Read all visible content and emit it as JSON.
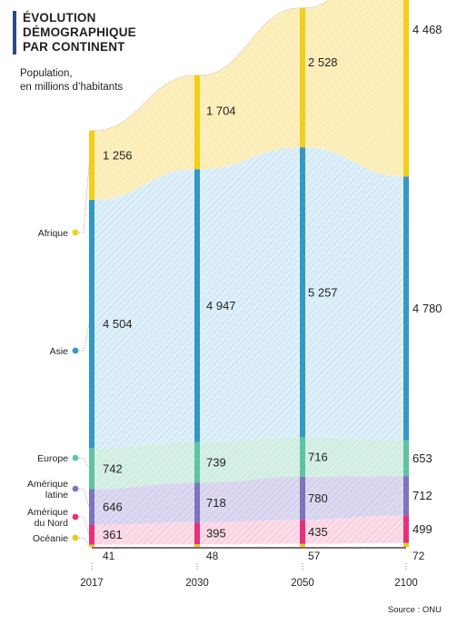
{
  "title_lines": [
    "ÉVOLUTION",
    "DÉMOGRAPHIQUE",
    "PAR CONTINENT"
  ],
  "subtitle_lines": [
    "Population,",
    "en millions d’habitants"
  ],
  "source": "Source : ONU",
  "chart_data": {
    "type": "area",
    "title": "ÉVOLUTION DÉMOGRAPHIQUE PAR CONTINENT",
    "subtitle": "Population, en millions d’habitants",
    "x": [
      "2017",
      "2030",
      "2050",
      "2100"
    ],
    "series": [
      {
        "name": "Océanie",
        "values": [
          41,
          48,
          57,
          72
        ],
        "value_labels": [
          "41",
          "48",
          "57",
          "72"
        ],
        "label_lines": [
          "Océanie"
        ],
        "color": "#e6cc1a",
        "stroke": "#e6cc1a",
        "fill": "#ffffff"
      },
      {
        "name": "Amérique du Nord",
        "values": [
          361,
          395,
          435,
          499
        ],
        "value_labels": [
          "361",
          "395",
          "435",
          "499"
        ],
        "label_lines": [
          "Amérique",
          "du Nord"
        ],
        "color": "#e8307a",
        "stroke": "#e8307a",
        "fill": "#fbdde9"
      },
      {
        "name": "Amérique latine",
        "values": [
          646,
          718,
          780,
          712
        ],
        "value_labels": [
          "646",
          "718",
          "780",
          "712"
        ],
        "label_lines": [
          "Amérique",
          "latine"
        ],
        "color": "#7b74c0",
        "stroke": "#7b74c0",
        "fill": "#dcd9f1"
      },
      {
        "name": "Europe",
        "values": [
          742,
          739,
          716,
          653
        ],
        "value_labels": [
          "742",
          "739",
          "716",
          "653"
        ],
        "label_lines": [
          "Europe"
        ],
        "color": "#5fc3a2",
        "stroke": "#5fc3a2",
        "fill": "#d7f0e5"
      },
      {
        "name": "Asie",
        "values": [
          4504,
          4947,
          5257,
          4780
        ],
        "value_labels": [
          "4 504",
          "4 947",
          "5 257",
          "4 780"
        ],
        "label_lines": [
          "Asie"
        ],
        "color": "#3498c6",
        "stroke": "#3498c6",
        "fill": "#dff0fa"
      },
      {
        "name": "Afrique",
        "values": [
          1256,
          1704,
          2528,
          4468
        ],
        "value_labels": [
          "1 256",
          "1 704",
          "2 528",
          "4 468"
        ],
        "label_lines": [
          "Afrique"
        ],
        "color": "#f2cf1b",
        "stroke": "#f2cf1b",
        "fill": "#fcefbe"
      }
    ],
    "stacked": true,
    "legend": "left"
  }
}
